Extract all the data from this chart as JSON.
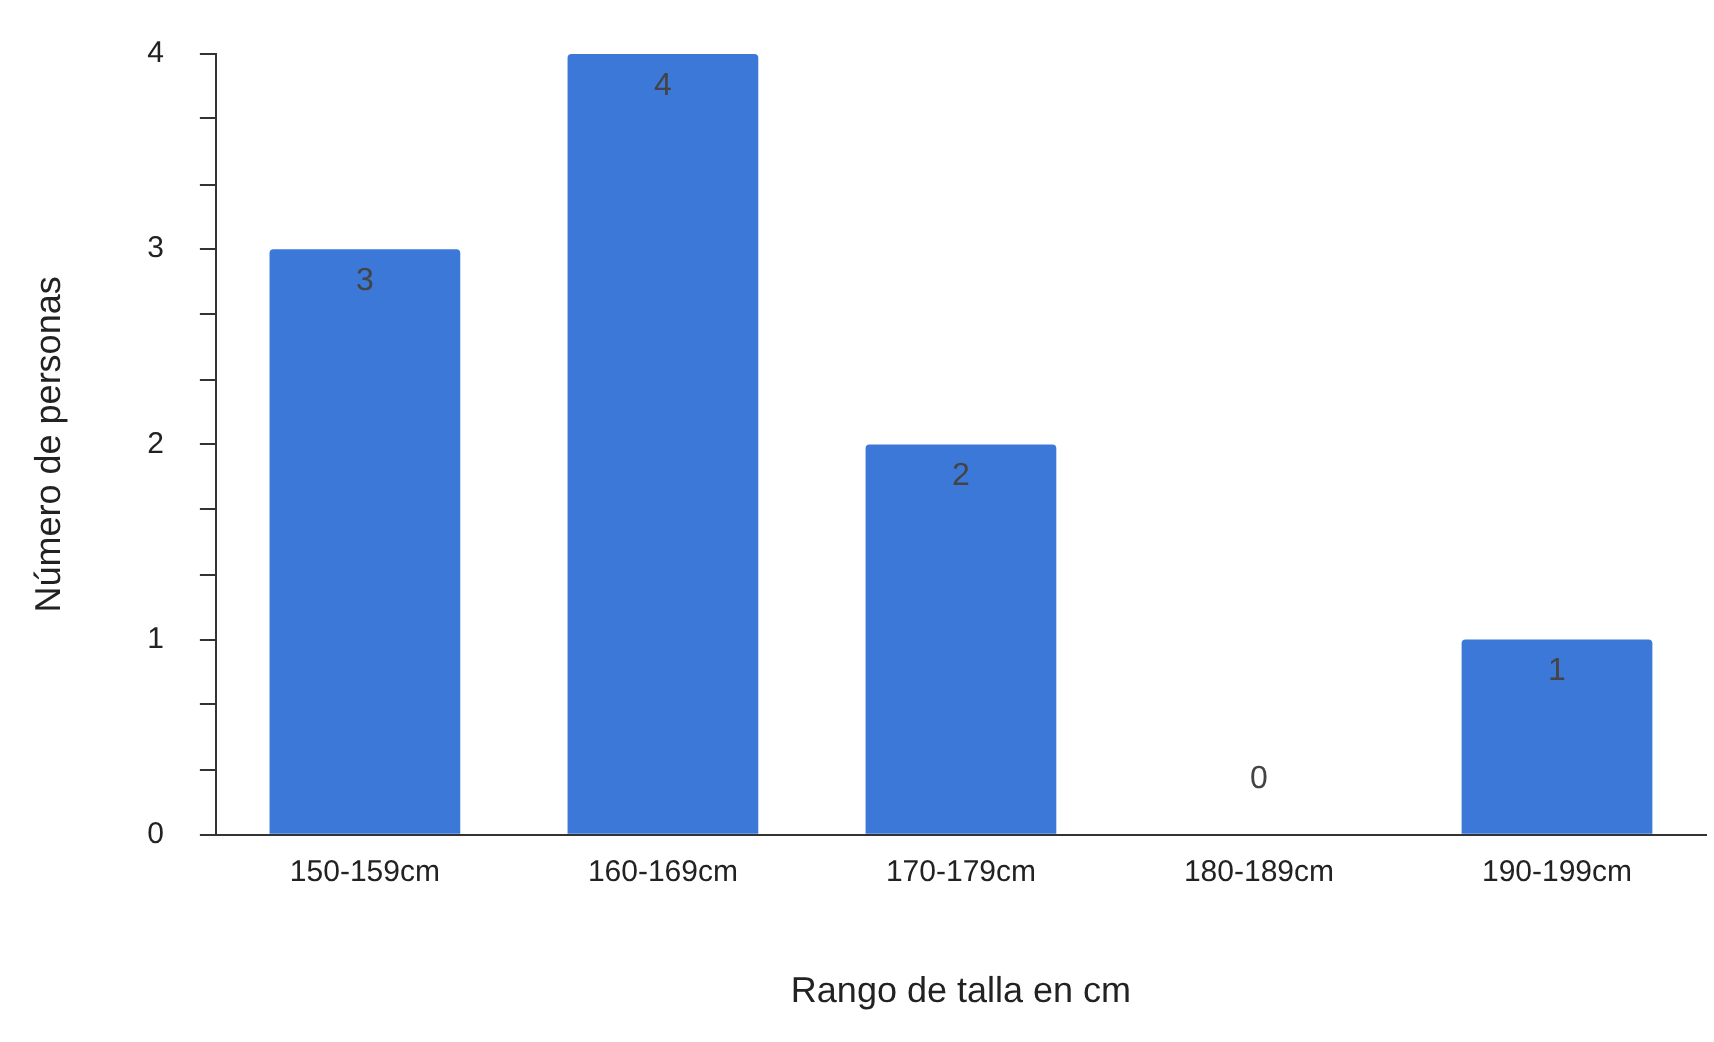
{
  "chart_data": {
    "type": "bar",
    "xlabel": "Rango de talla en cm",
    "ylabel": "Número de personas",
    "categories": [
      "150-159cm",
      "160-169cm",
      "170-179cm",
      "180-189cm",
      "190-199cm"
    ],
    "values": [
      3,
      4,
      2,
      0,
      1
    ],
    "color": "#3c78d8",
    "ylim": [
      0,
      4
    ],
    "yticks": [
      0,
      {
        "value": 0.33,
        "label": null
      },
      {
        "value": 0.67,
        "label": null
      },
      1,
      {
        "value": 1.33,
        "label": null
      },
      {
        "value": 1.67,
        "label": null
      },
      2,
      {
        "value": 2.33,
        "label": null
      },
      {
        "value": 2.67,
        "label": null
      },
      3,
      {
        "value": 3.33,
        "label": null
      },
      {
        "value": 3.67,
        "label": null
      },
      4
    ],
    "grid": false,
    "legend": false,
    "data_labels": true
  }
}
